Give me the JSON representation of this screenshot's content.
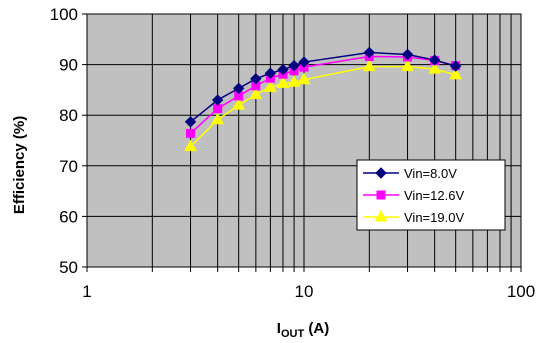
{
  "chart_data": {
    "type": "line",
    "x_scale": "log",
    "xlim": [
      1,
      100
    ],
    "ylim": [
      50,
      100
    ],
    "x_ticks": [
      "1",
      "10",
      "100"
    ],
    "y_ticks": [
      "50",
      "60",
      "70",
      "80",
      "90",
      "100"
    ],
    "xlabel_main": "I",
    "xlabel_sub": "OUT",
    "xlabel_unit": " (A)",
    "ylabel": "Efficiency (%)",
    "grid": true,
    "plot_background": "#c0c0c0",
    "legend_position": "inside-lower-right",
    "x": [
      3,
      4,
      5,
      6,
      7,
      8,
      9,
      10,
      20,
      30,
      40,
      50
    ],
    "series": [
      {
        "name": "Vin=8.0V",
        "color": "#000080",
        "marker": "diamond",
        "values": [
          78.7,
          83.0,
          85.3,
          87.2,
          88.3,
          89.0,
          89.8,
          90.5,
          92.4,
          92.0,
          90.9,
          89.7
        ]
      },
      {
        "name": "Vin=12.6V",
        "color": "#ff00ff",
        "marker": "square",
        "values": [
          76.4,
          81.3,
          83.8,
          85.8,
          87.3,
          88.1,
          88.8,
          89.5,
          91.6,
          91.5,
          90.8,
          89.8
        ]
      },
      {
        "name": "Vin=19.0V",
        "color": "#ffff00",
        "marker": "triangle",
        "values": [
          73.8,
          79.1,
          82.0,
          84.1,
          85.5,
          86.3,
          86.5,
          87.0,
          89.6,
          89.6,
          89.1,
          88.0
        ]
      }
    ]
  }
}
